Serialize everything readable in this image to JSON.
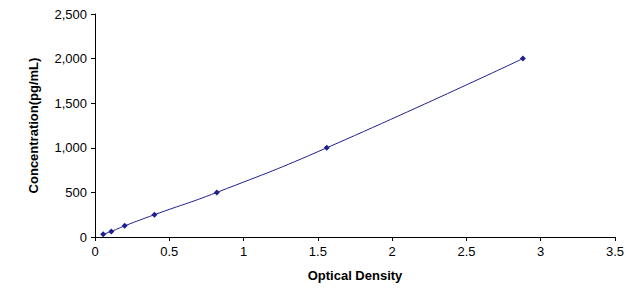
{
  "chart_data": {
    "type": "line",
    "x_label": "Optical Density",
    "y_label": "Concentration(pg/mL)",
    "x": [
      0.055,
      0.11,
      0.2,
      0.4,
      0.82,
      1.56,
      2.88
    ],
    "values": [
      31.25,
      62.5,
      125,
      250,
      500,
      1000,
      2000
    ],
    "color": "#1f1f8f",
    "marker": "diamond",
    "line_style": "solid",
    "xlim": [
      0,
      3.5
    ],
    "xticks": [
      0,
      0.5,
      1,
      1.5,
      2,
      2.5,
      3,
      3.5
    ],
    "ylim": [
      0,
      2500
    ],
    "yticks": [
      0,
      500,
      1000,
      1500,
      2000,
      2500
    ],
    "grid": false
  }
}
